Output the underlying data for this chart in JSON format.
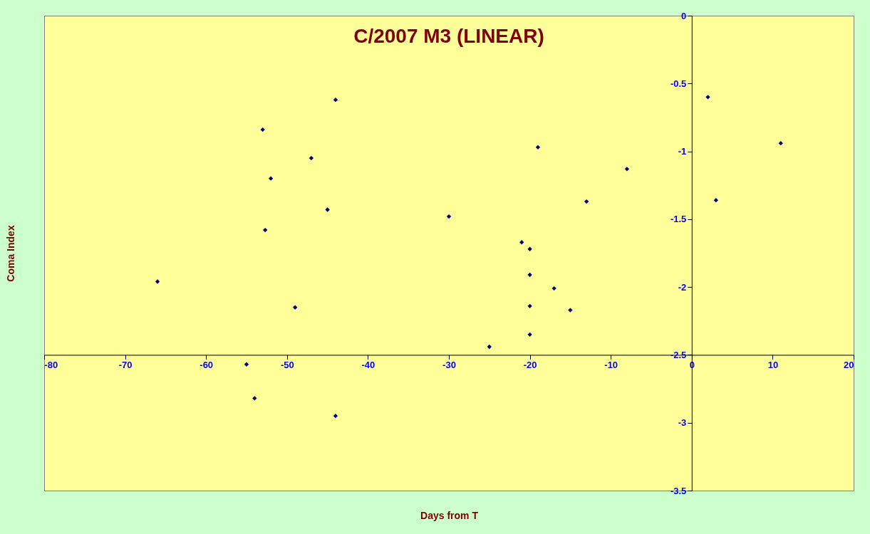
{
  "chart_data": {
    "type": "scatter",
    "title": "C/2007 M3 (LINEAR)",
    "xlabel": "Days from T",
    "ylabel": "Coma Index",
    "marker": "diamond",
    "grid": false,
    "xlim": [
      -80,
      20
    ],
    "xticks": [
      -80,
      -70,
      -60,
      -50,
      -40,
      -30,
      -20,
      -10,
      0,
      10,
      20
    ],
    "ylim": [
      -3.5,
      0
    ],
    "yticks": [
      0,
      -0.5,
      -1,
      -1.5,
      -2,
      -2.5,
      -3,
      -3.5
    ],
    "series": [
      {
        "color": "#000080",
        "x": [
          -66,
          -55,
          -54,
          -53,
          -52.7,
          -52,
          -49,
          -47,
          -45,
          -44,
          -44,
          -30,
          -25,
          -21,
          -20,
          -20,
          -20,
          -20,
          -19,
          -17,
          -15,
          -13,
          -8,
          2,
          3,
          11
        ],
        "values": [
          -1.96,
          -2.57,
          -2.82,
          -0.84,
          -1.58,
          -1.2,
          -2.15,
          -1.05,
          -1.43,
          -0.62,
          -2.95,
          -1.48,
          -2.44,
          -1.67,
          -1.72,
          -1.91,
          -2.14,
          -2.35,
          -0.97,
          -2.01,
          -2.17,
          -1.37,
          -1.13,
          -0.6,
          -1.36,
          -0.94
        ]
      }
    ]
  }
}
